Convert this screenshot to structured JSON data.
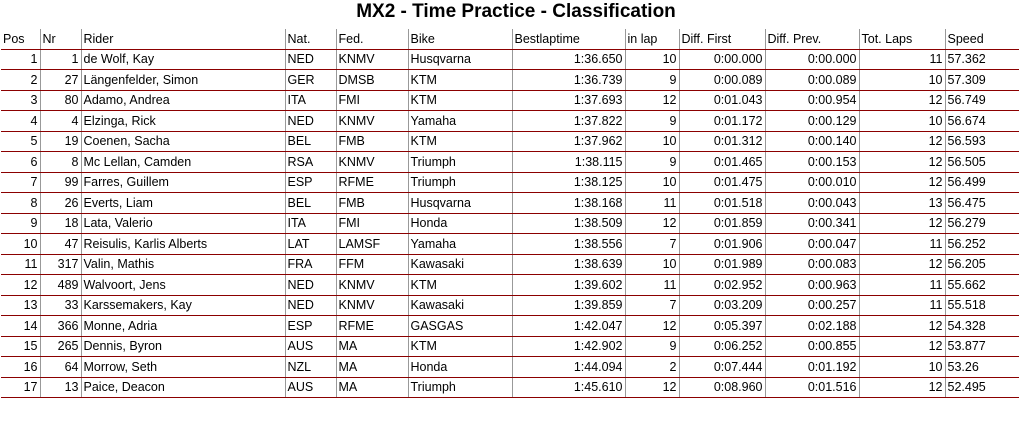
{
  "title": "MX2 - Time Practice - Classification",
  "columns": [
    "Pos",
    "Nr",
    "Rider",
    "Nat.",
    "Fed.",
    "Bike",
    "Bestlaptime",
    "in lap",
    "Diff. First",
    "Diff. Prev.",
    "Tot. Laps",
    "Speed"
  ],
  "rows": [
    [
      "1",
      "1",
      "de Wolf, Kay",
      "NED",
      "KNMV",
      "Husqvarna",
      "1:36.650",
      "10",
      "0:00.000",
      "0:00.000",
      "11",
      "57.362"
    ],
    [
      "2",
      "27",
      "Längenfelder, Simon",
      "GER",
      "DMSB",
      "KTM",
      "1:36.739",
      "9",
      "0:00.089",
      "0:00.089",
      "10",
      "57.309"
    ],
    [
      "3",
      "80",
      "Adamo, Andrea",
      "ITA",
      "FMI",
      "KTM",
      "1:37.693",
      "12",
      "0:01.043",
      "0:00.954",
      "12",
      "56.749"
    ],
    [
      "4",
      "4",
      "Elzinga, Rick",
      "NED",
      "KNMV",
      "Yamaha",
      "1:37.822",
      "9",
      "0:01.172",
      "0:00.129",
      "10",
      "56.674"
    ],
    [
      "5",
      "19",
      "Coenen, Sacha",
      "BEL",
      "FMB",
      "KTM",
      "1:37.962",
      "10",
      "0:01.312",
      "0:00.140",
      "12",
      "56.593"
    ],
    [
      "6",
      "8",
      "Mc Lellan, Camden",
      "RSA",
      "KNMV",
      "Triumph",
      "1:38.115",
      "9",
      "0:01.465",
      "0:00.153",
      "12",
      "56.505"
    ],
    [
      "7",
      "99",
      "Farres, Guillem",
      "ESP",
      "RFME",
      "Triumph",
      "1:38.125",
      "10",
      "0:01.475",
      "0:00.010",
      "12",
      "56.499"
    ],
    [
      "8",
      "26",
      "Everts, Liam",
      "BEL",
      "FMB",
      "Husqvarna",
      "1:38.168",
      "11",
      "0:01.518",
      "0:00.043",
      "13",
      "56.475"
    ],
    [
      "9",
      "18",
      "Lata, Valerio",
      "ITA",
      "FMI",
      "Honda",
      "1:38.509",
      "12",
      "0:01.859",
      "0:00.341",
      "12",
      "56.279"
    ],
    [
      "10",
      "47",
      "Reisulis, Karlis Alberts",
      "LAT",
      "LAMSF",
      "Yamaha",
      "1:38.556",
      "7",
      "0:01.906",
      "0:00.047",
      "11",
      "56.252"
    ],
    [
      "11",
      "317",
      "Valin, Mathis",
      "FRA",
      "FFM",
      "Kawasaki",
      "1:38.639",
      "10",
      "0:01.989",
      "0:00.083",
      "12",
      "56.205"
    ],
    [
      "12",
      "489",
      "Walvoort, Jens",
      "NED",
      "KNMV",
      "KTM",
      "1:39.602",
      "11",
      "0:02.952",
      "0:00.963",
      "11",
      "55.662"
    ],
    [
      "13",
      "33",
      "Karssemakers, Kay",
      "NED",
      "KNMV",
      "Kawasaki",
      "1:39.859",
      "7",
      "0:03.209",
      "0:00.257",
      "11",
      "55.518"
    ],
    [
      "14",
      "366",
      "Monne, Adria",
      "ESP",
      "RFME",
      "GASGAS",
      "1:42.047",
      "12",
      "0:05.397",
      "0:02.188",
      "12",
      "54.328"
    ],
    [
      "15",
      "265",
      "Dennis, Byron",
      "AUS",
      "MA",
      "KTM",
      "1:42.902",
      "9",
      "0:06.252",
      "0:00.855",
      "12",
      "53.877"
    ],
    [
      "16",
      "64",
      "Morrow, Seth",
      "NZL",
      "MA",
      "Honda",
      "1:44.094",
      "2",
      "0:07.444",
      "0:01.192",
      "10",
      "53.26"
    ],
    [
      "17",
      "13",
      "Paice, Deacon",
      "AUS",
      "MA",
      "Triumph",
      "1:45.610",
      "12",
      "0:08.960",
      "0:01.516",
      "12",
      "52.495"
    ]
  ]
}
